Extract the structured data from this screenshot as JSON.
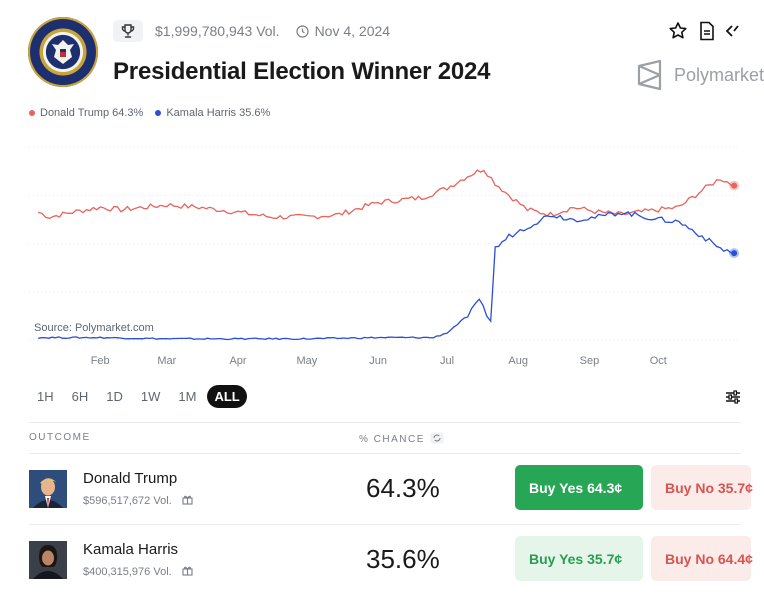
{
  "header": {
    "volume": "$1,999,780,943 Vol.",
    "date": "Nov 4, 2024",
    "title": "Presidential Election Winner 2024",
    "brand": "Polymarket",
    "icons": [
      "trophy-icon",
      "clock-icon",
      "star-icon",
      "document-icon",
      "embed-icon",
      "polymarket-logo-icon"
    ]
  },
  "legend": [
    {
      "label": "Donald Trump 64.3%",
      "color": "#e8635a"
    },
    {
      "label": "Kamala Harris 35.6%",
      "color": "#2a4fd6"
    }
  ],
  "source_label": "Source: Polymarket.com",
  "time_ranges": [
    "1H",
    "6H",
    "1D",
    "1W",
    "1M",
    "ALL"
  ],
  "active_range": "ALL",
  "table": {
    "outcome_header": "OUTCOME",
    "chance_header": "% CHANCE",
    "rows": [
      {
        "name": "Donald Trump",
        "volume": "$596,517,672 Vol.",
        "chance": "64.3%",
        "buy_yes": "Buy Yes 64.3¢",
        "buy_no": "Buy No 35.7¢"
      },
      {
        "name": "Kamala Harris",
        "volume": "$400,315,976 Vol.",
        "chance": "35.6%",
        "buy_yes": "Buy Yes 35.7¢",
        "buy_no": "Buy No 64.4¢"
      }
    ]
  },
  "colors": {
    "trump": "#e8635a",
    "harris": "#2a4fd6",
    "buy_yes": "#27a655",
    "buy_no": "#d9534f"
  },
  "chart_data": {
    "type": "line",
    "x_tick_labels": [
      "Feb",
      "Mar",
      "Apr",
      "May",
      "Jun",
      "Jul",
      "Aug",
      "Sep",
      "Oct"
    ],
    "ylim": [
      0,
      80
    ],
    "grid": true,
    "legend_position": "top-left",
    "series": [
      {
        "name": "Donald Trump",
        "color": "#e8635a",
        "points": [
          [
            "Jan 5",
            53
          ],
          [
            "Jan 10",
            51
          ],
          [
            "Jan 20",
            53
          ],
          [
            "Feb 1",
            55
          ],
          [
            "Feb 10",
            54
          ],
          [
            "Feb 20",
            55
          ],
          [
            "Mar 1",
            56
          ],
          [
            "Mar 15",
            55
          ],
          [
            "Apr 1",
            53
          ],
          [
            "Apr 15",
            51
          ],
          [
            "May 1",
            51
          ],
          [
            "May 15",
            52
          ],
          [
            "May 25",
            55
          ],
          [
            "Jun 1",
            57
          ],
          [
            "Jun 10",
            58
          ],
          [
            "Jun 20",
            59
          ],
          [
            "Jul 1",
            63
          ],
          [
            "Jul 10",
            68
          ],
          [
            "Jul 17",
            71
          ],
          [
            "Jul 22",
            65
          ],
          [
            "Jul 28",
            60
          ],
          [
            "Aug 5",
            54
          ],
          [
            "Aug 15",
            52
          ],
          [
            "Aug 25",
            55
          ],
          [
            "Sep 5",
            53
          ],
          [
            "Sep 15",
            52
          ],
          [
            "Oct 1",
            54
          ],
          [
            "Oct 10",
            55
          ],
          [
            "Oct 20",
            62
          ],
          [
            "Oct 28",
            67
          ],
          [
            "Nov 3",
            64
          ]
        ]
      },
      {
        "name": "Kamala Harris",
        "color": "#2a4fd6",
        "points": [
          [
            "Jan 5",
            1
          ],
          [
            "Feb 1",
            1
          ],
          [
            "Mar 1",
            0.5
          ],
          [
            "Apr 1",
            0.5
          ],
          [
            "May 1",
            0.5
          ],
          [
            "Jun 1",
            1
          ],
          [
            "Jun 25",
            1
          ],
          [
            "Jul 1",
            3
          ],
          [
            "Jul 10",
            10
          ],
          [
            "Jul 15",
            16
          ],
          [
            "Jul 20",
            8
          ],
          [
            "Jul 22",
            38
          ],
          [
            "Jul 28",
            43
          ],
          [
            "Aug 5",
            47
          ],
          [
            "Aug 15",
            52
          ],
          [
            "Aug 25",
            50
          ],
          [
            "Sep 5",
            51
          ],
          [
            "Sep 15",
            53
          ],
          [
            "Oct 1",
            50
          ],
          [
            "Oct 10",
            49
          ],
          [
            "Oct 20",
            43
          ],
          [
            "Oct 28",
            38
          ],
          [
            "Nov 3",
            36
          ]
        ]
      }
    ]
  }
}
